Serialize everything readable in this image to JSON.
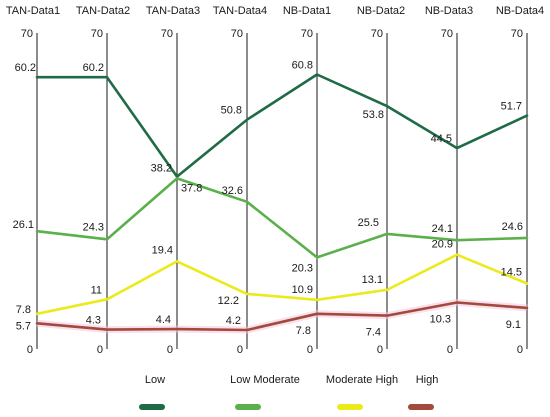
{
  "chart_data": {
    "type": "line",
    "categories": [
      "TAN-Data1",
      "TAN-Data2",
      "TAN-Data3",
      "TAN-Data4",
      "NB-Data1",
      "NB-Data2",
      "NB-Data3",
      "NB-Data4"
    ],
    "axis_min_label": "0",
    "axis_max_label": "70",
    "ylim": [
      0,
      70
    ],
    "grid": false,
    "legend_position": "bottom",
    "series": [
      {
        "name": "Low",
        "color": "#1e6b45",
        "values": [
          60.2,
          60.2,
          38.2,
          50.8,
          60.8,
          53.8,
          44.5,
          51.7
        ],
        "labels": [
          "60.2",
          "60.2",
          "38.2",
          "50.8",
          "60.8",
          "53.8",
          "44.5",
          "51.7"
        ]
      },
      {
        "name": "Low Moderate",
        "color": "#5bb04c",
        "values": [
          26.1,
          24.3,
          37.8,
          32.6,
          20.3,
          25.5,
          24.1,
          24.6
        ],
        "labels": [
          "26.1",
          "24.3",
          "37.8",
          "32.6",
          "20.3",
          "25.5",
          "24.1",
          "24.6"
        ]
      },
      {
        "name": "Moderate High",
        "color": "#eaea1c",
        "values": [
          7.8,
          11,
          19.4,
          12.2,
          10.9,
          13.1,
          20.9,
          14.5
        ],
        "labels": [
          "7.8",
          "11",
          "19.4",
          "12.2",
          "10.9",
          "13.1",
          "20.9",
          "14.5"
        ]
      },
      {
        "name": "High",
        "color": "#a24a3c",
        "values": [
          5.7,
          4.3,
          4.4,
          4.2,
          7.8,
          7.4,
          10.3,
          9.1
        ],
        "labels": [
          "5.7",
          "4.3",
          "4.4",
          "4.2",
          "7.8",
          "7.4",
          "10.3",
          "9.1"
        ]
      }
    ]
  }
}
